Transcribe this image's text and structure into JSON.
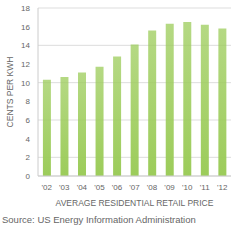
{
  "chart_data": {
    "type": "bar",
    "categories": [
      "'02",
      "'03",
      "'04",
      "'05",
      "'06",
      "'07",
      "'08",
      "'09",
      "'10",
      "'11",
      "'12"
    ],
    "values": [
      10.3,
      10.6,
      11.1,
      11.7,
      12.8,
      14.1,
      15.6,
      16.3,
      16.5,
      16.2,
      15.8
    ],
    "color": "#9ccc5a",
    "ylim": [
      0,
      18
    ],
    "yticks": [
      0,
      2,
      4,
      6,
      8,
      10,
      12,
      14,
      16,
      18
    ],
    "grid": true,
    "xlabel": "AVERAGE RESIDENTIAL RETAIL PRICE",
    "ylabel": "CENTS PER KWH",
    "annotations": [
      "Source: US Energy Information Administration"
    ]
  }
}
